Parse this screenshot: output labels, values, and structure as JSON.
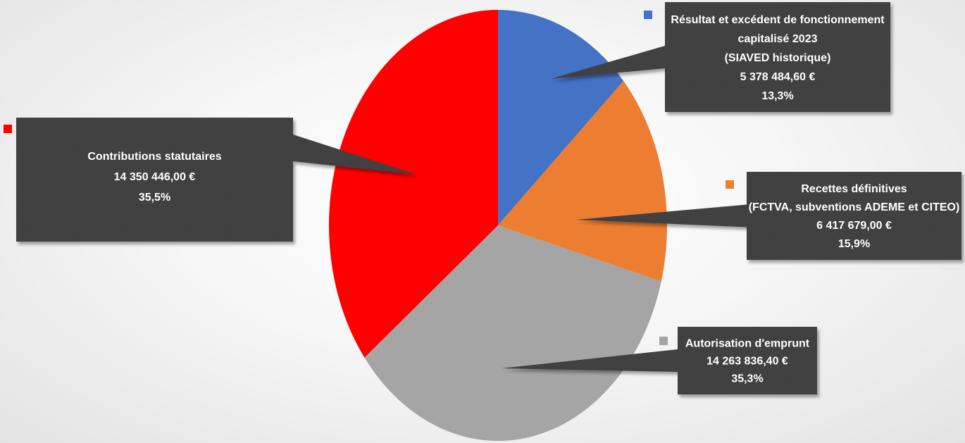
{
  "chart_data": {
    "type": "pie",
    "categories": [
      "Résultat et excédent de fonctionnement capitalisé 2023 (SIAVED historique)",
      "Recettes définitives (FCTVA, subventions ADEME et CITEO)",
      "Autorisation d'emprunt",
      "Contributions statutaires"
    ],
    "values": [
      5378484.6,
      6417679.0,
      14263836.4,
      14350446.0
    ],
    "colors": [
      "#4472C4",
      "#ED7D31",
      "#A5A5A5",
      "#FF0000"
    ],
    "labels": [
      {
        "lines": [
          "Résultat et excédent de fonctionnement",
          "capitalisé 2023",
          "(SIAVED historique)"
        ],
        "value": "5 378 484,60 €",
        "percent": "13,3%"
      },
      {
        "lines": [
          "Recettes définitives",
          "(FCTVA, subventions ADEME et CITEO)"
        ],
        "value": "6 417 679,00 €",
        "percent": "15,9%"
      },
      {
        "lines": [
          "Autorisation d'emprunt"
        ],
        "value": "14 263 836,40 €",
        "percent": "35,3%"
      },
      {
        "lines": [
          "Contributions statutaires"
        ],
        "value": "14 350 446,00 €",
        "percent": "35,5%"
      }
    ]
  }
}
